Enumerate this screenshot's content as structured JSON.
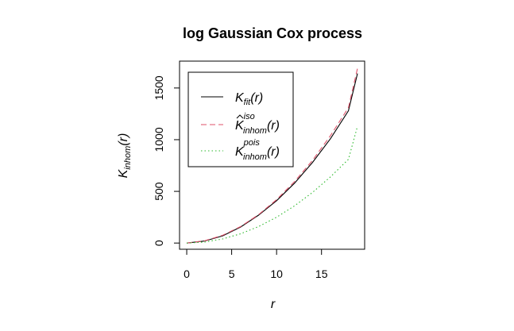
{
  "chart_data": {
    "type": "line",
    "title": "log Gaussian Cox process",
    "xlabel": {
      "main": "r",
      "sub": ""
    },
    "ylabel": {
      "main": "K",
      "sub": "inhom",
      "arg": "(r)"
    },
    "xlim": [
      -0.8,
      19.8
    ],
    "ylim": [
      -60,
      1760
    ],
    "x_ticks": [
      0,
      5,
      10,
      15
    ],
    "y_ticks": [
      0,
      500,
      1000,
      1500
    ],
    "grid": false,
    "legend_position": "top-left",
    "series": [
      {
        "key": "fit",
        "legend_main": "K",
        "legend_sub": "fit",
        "legend_sup": "",
        "legend_arg": "(r)",
        "hat": false,
        "color": "#000000",
        "dash": "none",
        "x": [
          0,
          2,
          4,
          6,
          8,
          10,
          12,
          14,
          16,
          18,
          19
        ],
        "y": [
          0,
          20,
          70,
          155,
          270,
          410,
          580,
          780,
          1010,
          1280,
          1640
        ]
      },
      {
        "key": "iso",
        "legend_main": "K",
        "legend_sub": "inhom",
        "legend_sup": "iso",
        "legend_arg": "(r)",
        "hat": true,
        "color": "#DF536B",
        "dash": "7,4",
        "x": [
          0,
          2,
          4,
          6,
          8,
          10,
          12,
          14,
          16,
          18,
          19
        ],
        "y": [
          0,
          22,
          75,
          160,
          275,
          420,
          595,
          800,
          1040,
          1310,
          1690
        ]
      },
      {
        "key": "pois",
        "legend_main": "K",
        "legend_sub": "inhom",
        "legend_sup": "pois",
        "legend_arg": "(r)",
        "hat": false,
        "color": "#2DB92D",
        "dash": "1.5,3",
        "x": [
          0,
          2,
          4,
          6,
          8,
          10,
          12,
          14,
          16,
          18,
          19
        ],
        "y": [
          0,
          10,
          40,
          90,
          160,
          250,
          360,
          490,
          640,
          810,
          1130
        ]
      }
    ]
  }
}
